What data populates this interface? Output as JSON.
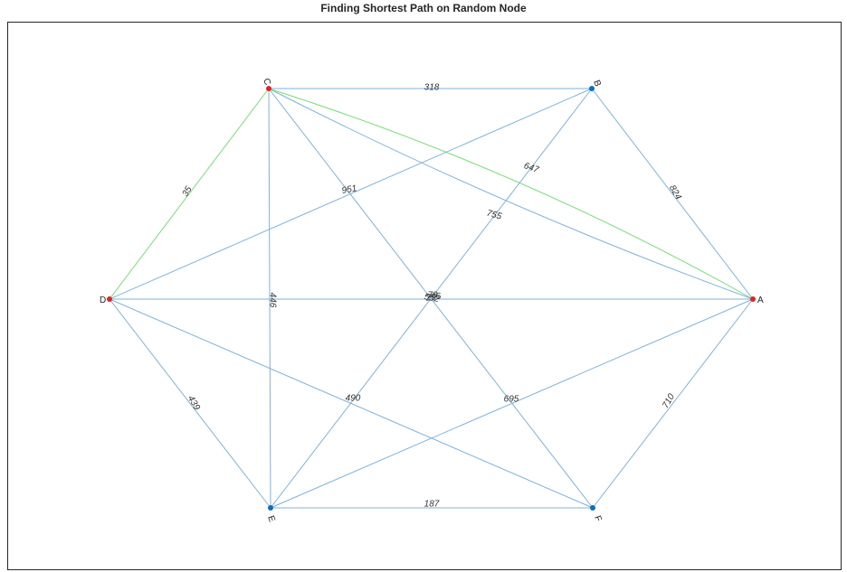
{
  "title": "Finding Shortest Path on Random Node",
  "colors": {
    "edge": "#7fb2d9",
    "path_edge": "#77dd77",
    "node": "#0b6fbf",
    "path_node": "#e02424",
    "axes_border": "#262626"
  },
  "nodes": [
    {
      "id": "A",
      "on_path": true
    },
    {
      "id": "B",
      "on_path": false
    },
    {
      "id": "C",
      "on_path": true
    },
    {
      "id": "D",
      "on_path": true
    },
    {
      "id": "E",
      "on_path": false
    },
    {
      "id": "F",
      "on_path": false
    }
  ],
  "edges": [
    {
      "from": "C",
      "to": "B",
      "weight": "318",
      "on_path": false
    },
    {
      "from": "B",
      "to": "A",
      "weight": "824",
      "on_path": false
    },
    {
      "from": "C",
      "to": "D",
      "weight": "35",
      "on_path": true
    },
    {
      "from": "C",
      "to": "A",
      "weight": "647",
      "on_path": false
    },
    {
      "from": "C",
      "to": "A",
      "weight": "755",
      "on_path": true
    },
    {
      "from": "D",
      "to": "B",
      "weight": "951",
      "on_path": false
    },
    {
      "from": "C",
      "to": "E",
      "weight": "446",
      "on_path": false
    },
    {
      "from": "D",
      "to": "E",
      "weight": "439",
      "on_path": false
    },
    {
      "from": "D",
      "to": "F",
      "weight": "490",
      "on_path": false
    },
    {
      "from": "E",
      "to": "A",
      "weight": "695",
      "on_path": false
    },
    {
      "from": "F",
      "to": "A",
      "weight": "710",
      "on_path": false
    },
    {
      "from": "E",
      "to": "F",
      "weight": "187",
      "on_path": false
    },
    {
      "from": "D",
      "to": "A",
      "weight": "",
      "on_path": false
    },
    {
      "from": "C",
      "to": "F",
      "weight": "",
      "on_path": false
    },
    {
      "from": "B",
      "to": "E",
      "weight": "",
      "on_path": false
    }
  ],
  "overlap_labels": [
    "78",
    "552",
    "296"
  ]
}
